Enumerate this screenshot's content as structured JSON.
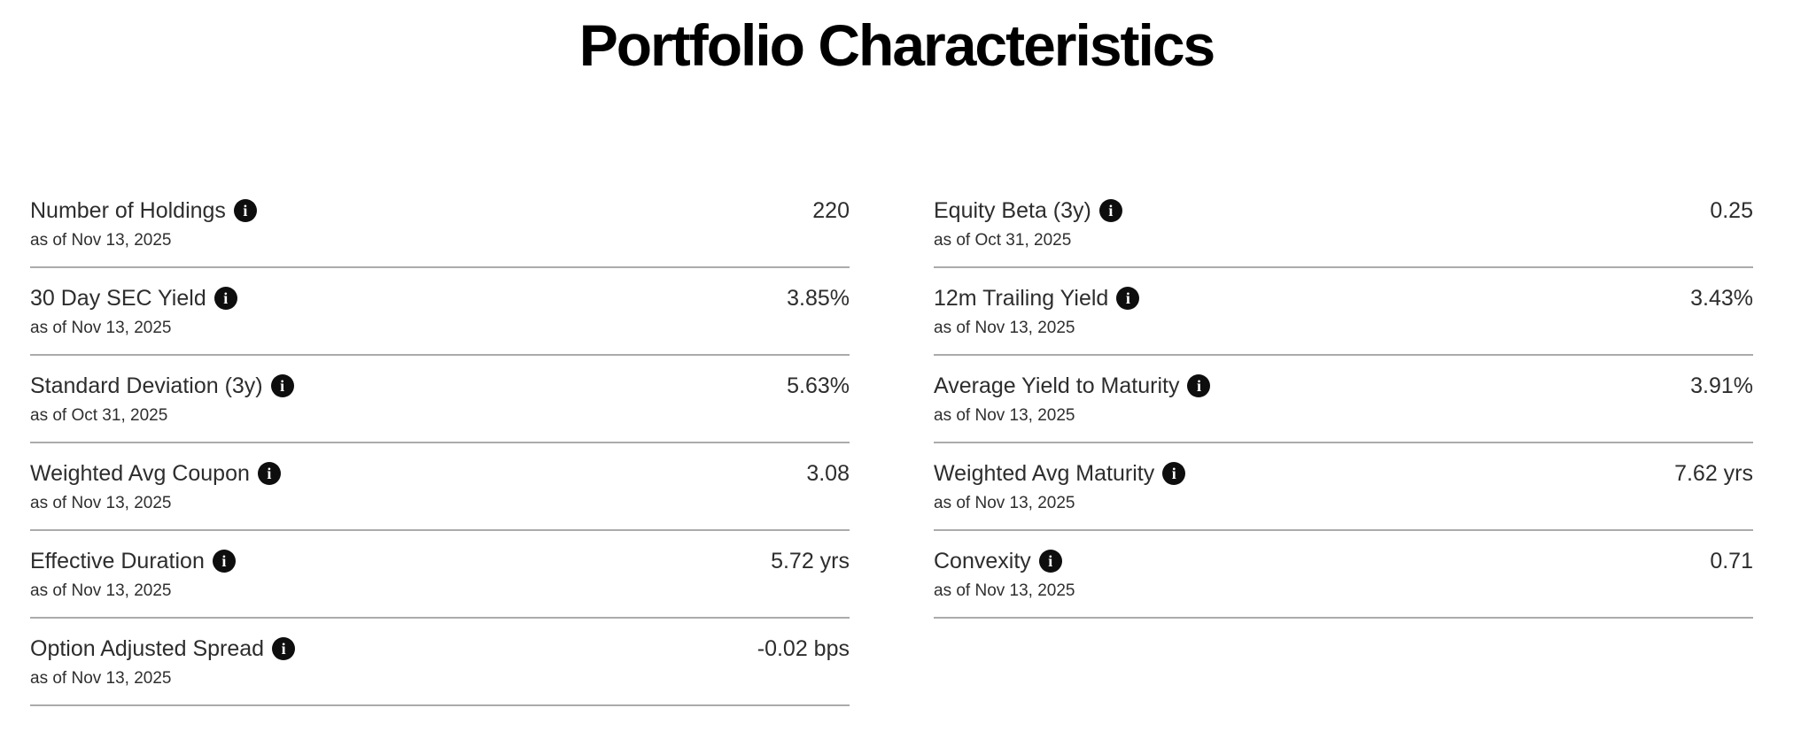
{
  "page": {
    "title": "Portfolio Characteristics"
  },
  "info_icon": {
    "glyph": "i"
  },
  "colors": {
    "text": "#2d2d2d",
    "divider": "#ababab",
    "icon_background": "#0e0e0e",
    "icon_glyph": "#ffffff",
    "background": "#ffffff"
  },
  "columns": {
    "left": [
      {
        "label": "Number of Holdings",
        "as_of": "as of Nov 13, 2025",
        "value": "220"
      },
      {
        "label": "30 Day SEC Yield",
        "as_of": "as of Nov 13, 2025",
        "value": "3.85%"
      },
      {
        "label": "Standard Deviation (3y)",
        "as_of": "as of Oct 31, 2025",
        "value": "5.63%"
      },
      {
        "label": "Weighted Avg Coupon",
        "as_of": "as of Nov 13, 2025",
        "value": "3.08"
      },
      {
        "label": "Effective Duration",
        "as_of": "as of Nov 13, 2025",
        "value": "5.72 yrs"
      },
      {
        "label": "Option Adjusted Spread",
        "as_of": "as of Nov 13, 2025",
        "value": "-0.02 bps"
      }
    ],
    "right": [
      {
        "label": "Equity Beta (3y)",
        "as_of": "as of Oct 31, 2025",
        "value": "0.25"
      },
      {
        "label": "12m Trailing Yield",
        "as_of": "as of Nov 13, 2025",
        "value": "3.43%"
      },
      {
        "label": "Average Yield to Maturity",
        "as_of": "as of Nov 13, 2025",
        "value": "3.91%"
      },
      {
        "label": "Weighted Avg Maturity",
        "as_of": "as of Nov 13, 2025",
        "value": "7.62 yrs"
      },
      {
        "label": "Convexity",
        "as_of": "as of Nov 13, 2025",
        "value": "0.71"
      }
    ]
  }
}
